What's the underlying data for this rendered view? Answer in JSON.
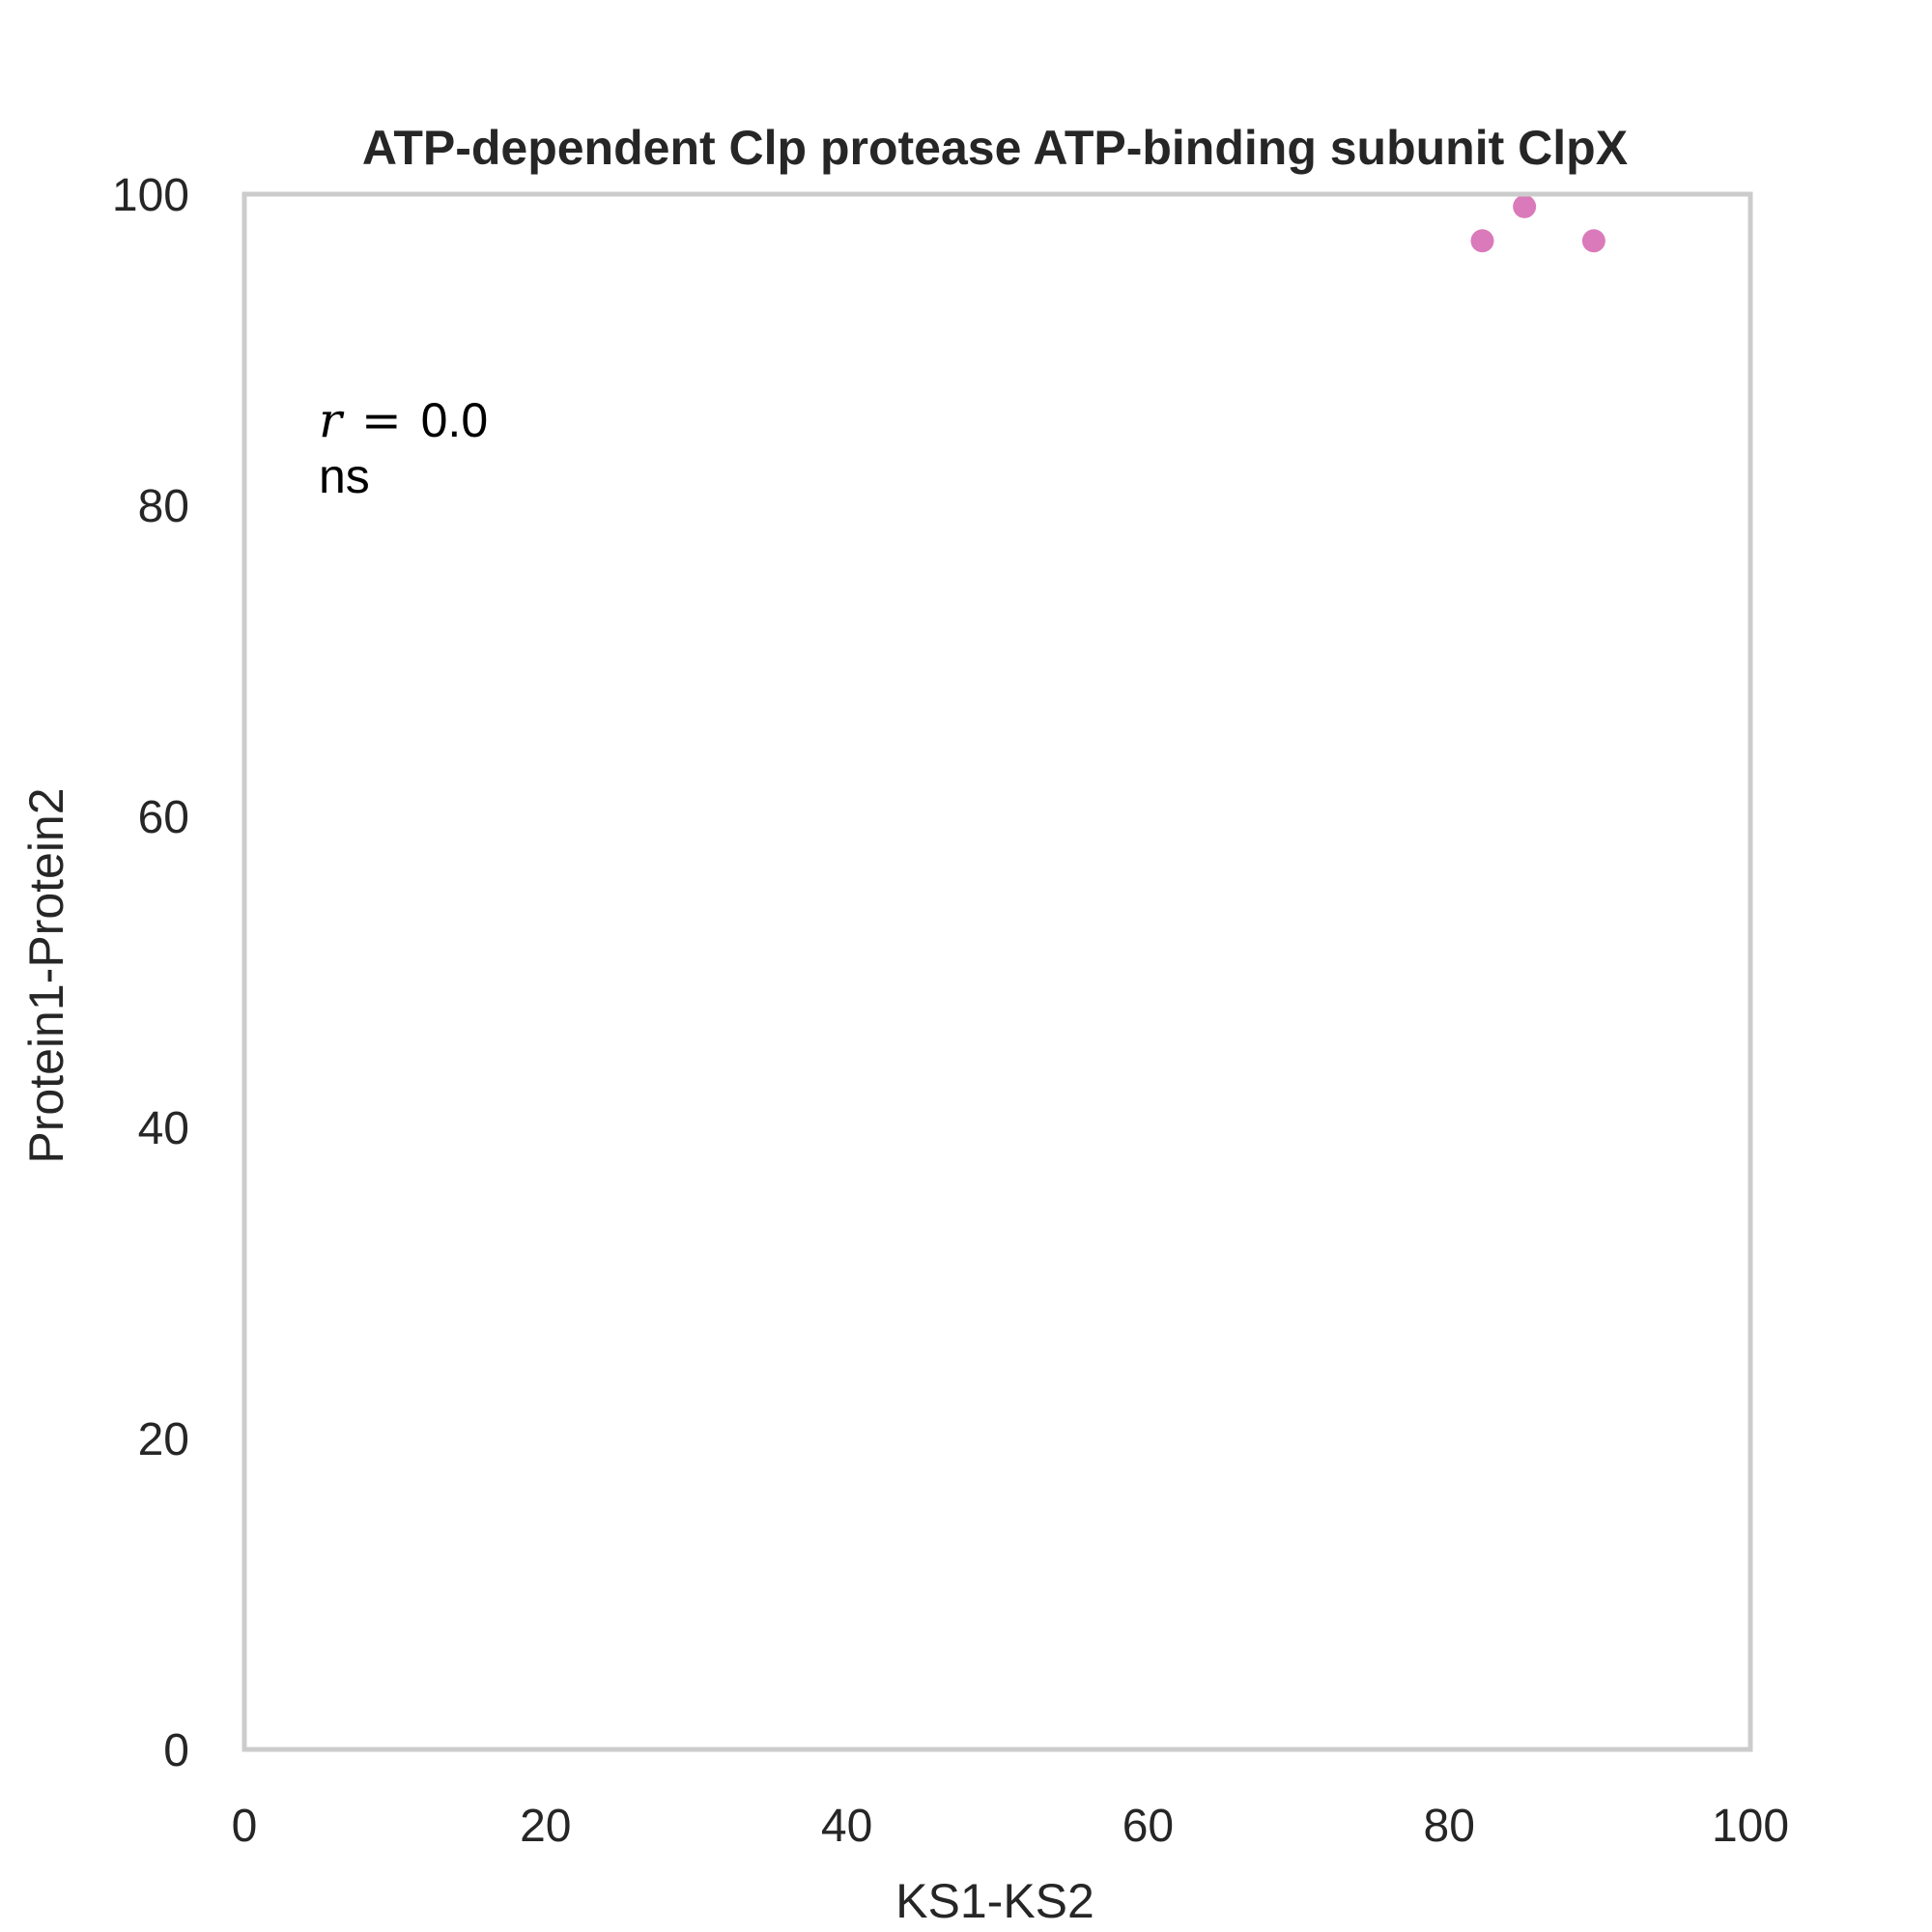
{
  "chart_data": {
    "type": "scatter",
    "title": "ATP-dependent Clp protease ATP-binding subunit ClpX",
    "xlabel": "KS1-KS2",
    "ylabel": "Protein1-Protein2",
    "xlim": [
      0,
      100
    ],
    "ylim": [
      0,
      100
    ],
    "xticks": [
      "0",
      "20",
      "40",
      "60",
      "80",
      "100"
    ],
    "yticks": [
      "0",
      "20",
      "40",
      "60",
      "80",
      "100"
    ],
    "grid": false,
    "points": [
      {
        "x": 82.2,
        "y": 97.0
      },
      {
        "x": 85.0,
        "y": 99.2
      },
      {
        "x": 89.6,
        "y": 97.0
      }
    ],
    "point_color": "#d66bb3",
    "frame_color": "#cccccc",
    "annotation": {
      "r_symbol": "r",
      "r_equals": "=",
      "r_value": "0.0",
      "significance": "ns"
    }
  }
}
